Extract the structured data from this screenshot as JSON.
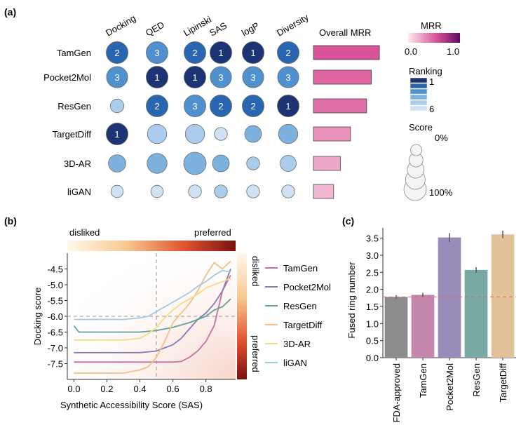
{
  "panel_labels": {
    "a": "(a)",
    "b": "(b)",
    "c": "(c)"
  },
  "colors": {
    "rank": [
      "#1c3474",
      "#2a65b1",
      "#4f90cf",
      "#7db2de",
      "#aacdeb",
      "#cfe1f3"
    ],
    "mrr_low": "#fbe3ea",
    "mrr_high": "#5e0b62",
    "line_colors": [
      "#c96ea6",
      "#8b78b6",
      "#5fa397",
      "#f2c086",
      "#f4dc86",
      "#9fcbe6"
    ],
    "bar_colors": [
      "#8c8c8c",
      "#c586ae",
      "#9a8cba",
      "#78a9a3",
      "#e3c29a"
    ],
    "bad": "#fff6e8",
    "good": "#c43a2c"
  },
  "chart_data": [
    {
      "type": "bubble-matrix",
      "columns": [
        "Docking",
        "QED",
        "Lipinski",
        "SAS",
        "logP",
        "Diversity"
      ],
      "rows": [
        {
          "name": "TamGen",
          "ranks": [
            2,
            3,
            2,
            1,
            1,
            2
          ],
          "scores": [
            95,
            95,
            95,
            95,
            95,
            95
          ],
          "mrr": 0.98
        },
        {
          "name": "Pocket2Mol",
          "ranks": [
            3,
            1,
            1,
            3,
            3,
            3
          ],
          "scores": [
            90,
            95,
            95,
            90,
            90,
            90
          ],
          "mrr": 0.86
        },
        {
          "name": "ResGen",
          "ranks": [
            5,
            2,
            3,
            2,
            2,
            1
          ],
          "scores": [
            30,
            95,
            95,
            95,
            95,
            95
          ],
          "mrr": 0.79
        },
        {
          "name": "TargetDiff",
          "ranks": [
            1,
            5,
            5,
            6,
            4,
            4
          ],
          "scores": [
            95,
            75,
            75,
            25,
            55,
            75
          ],
          "mrr": 0.55
        },
        {
          "name": "3D-AR",
          "ranks": [
            4,
            4,
            4,
            4,
            5,
            5
          ],
          "scores": [
            60,
            80,
            100,
            55,
            25,
            50
          ],
          "mrr": 0.4
        },
        {
          "name": "liGAN",
          "ranks": [
            6,
            6,
            6,
            5,
            6,
            6
          ],
          "scores": [
            20,
            20,
            25,
            25,
            25,
            25
          ],
          "mrr": 0.3
        }
      ],
      "overall_label": "Overall MRR",
      "legend": {
        "mrr_title": "MRR",
        "mrr_min": "0.0",
        "mrr_max": "1.0",
        "ranking_title": "Ranking",
        "ranking_top": "1",
        "ranking_bottom": "6",
        "score_title": "Score",
        "score_min": "0%",
        "score_max": "100%"
      }
    },
    {
      "type": "line",
      "title_left": "disliked",
      "title_right": "preferred",
      "side_top": "disliked",
      "side_bottom": "preferred",
      "xlabel": "Synthetic Accessibility Score (SAS)",
      "ylabel": "Docking score",
      "xlim": [
        -0.04,
        0.98
      ],
      "ylim": [
        -8.0,
        -4.0
      ],
      "xticks": [
        0.0,
        0.2,
        0.4,
        0.6,
        0.8
      ],
      "xtick_labels": [
        "0.0",
        "0.2",
        "0.4",
        "0.6",
        "0.8"
      ],
      "yticks": [
        -4.5,
        -5.0,
        -5.5,
        -6.0,
        -6.5,
        -7.0,
        -7.5
      ],
      "ytick_labels": [
        "-4.5",
        "-5.0",
        "-5.5",
        "-6.0",
        "-6.5",
        "-7.0",
        "-7.5"
      ],
      "vline": 0.5,
      "hline": -6.0,
      "series": [
        {
          "name": "TamGen",
          "x": [
            0.0,
            0.1,
            0.2,
            0.3,
            0.4,
            0.5,
            0.6,
            0.65,
            0.7,
            0.75,
            0.8,
            0.85,
            0.9,
            0.95
          ],
          "y": [
            -7.45,
            -7.45,
            -7.45,
            -7.45,
            -7.45,
            -7.45,
            -7.45,
            -7.43,
            -7.3,
            -7.1,
            -6.8,
            -6.3,
            -5.2,
            -4.7
          ]
        },
        {
          "name": "Pocket2Mol",
          "x": [
            0.0,
            0.1,
            0.2,
            0.3,
            0.4,
            0.5,
            0.55,
            0.6,
            0.65,
            0.7,
            0.75,
            0.8,
            0.85,
            0.9,
            0.95
          ],
          "y": [
            -7.15,
            -7.15,
            -7.15,
            -7.15,
            -7.15,
            -7.1,
            -7.0,
            -6.9,
            -6.7,
            -6.4,
            -6.1,
            -5.9,
            -5.6,
            -5.2,
            -4.5
          ]
        },
        {
          "name": "ResGen",
          "x": [
            0.0,
            0.03,
            0.1,
            0.2,
            0.3,
            0.4,
            0.5,
            0.6,
            0.7,
            0.75,
            0.8,
            0.85,
            0.9,
            0.95
          ],
          "y": [
            -6.3,
            -6.5,
            -6.5,
            -6.5,
            -6.5,
            -6.5,
            -6.45,
            -6.35,
            -6.2,
            -6.1,
            -6.0,
            -5.8,
            -5.7,
            -5.45
          ]
        },
        {
          "name": "TargetDiff",
          "x": [
            0.0,
            0.1,
            0.2,
            0.3,
            0.4,
            0.45,
            0.5,
            0.55,
            0.6,
            0.65,
            0.7,
            0.75,
            0.8,
            0.85,
            0.9,
            0.95
          ],
          "y": [
            -7.8,
            -7.8,
            -7.8,
            -7.8,
            -7.7,
            -7.6,
            -7.3,
            -6.8,
            -6.2,
            -5.9,
            -5.6,
            -5.2,
            -4.7,
            -4.3,
            -4.5,
            -4.25
          ]
        },
        {
          "name": "3D-AR",
          "x": [
            0.0,
            0.1,
            0.2,
            0.3,
            0.4,
            0.45,
            0.5,
            0.55,
            0.6,
            0.65,
            0.7,
            0.75,
            0.8,
            0.85,
            0.9,
            0.95
          ],
          "y": [
            -6.75,
            -6.75,
            -6.75,
            -6.75,
            -6.7,
            -6.55,
            -6.35,
            -6.05,
            -5.8,
            -5.6,
            -5.45,
            -5.3,
            -5.1,
            -5.0,
            -4.9,
            -4.8
          ]
        },
        {
          "name": "liGAN",
          "x": [
            0.0,
            0.1,
            0.2,
            0.3,
            0.4,
            0.45,
            0.5,
            0.55,
            0.6,
            0.65,
            0.7,
            0.75,
            0.8,
            0.85,
            0.9,
            0.95
          ],
          "y": [
            -6.1,
            -6.1,
            -6.1,
            -6.1,
            -6.05,
            -6.0,
            -5.85,
            -5.7,
            -5.55,
            -5.4,
            -5.25,
            -5.05,
            -4.9,
            -4.7,
            -4.55,
            -4.6
          ]
        }
      ]
    },
    {
      "type": "bar",
      "ylabel": "Fused ring number",
      "categories": [
        "FDA-approved",
        "TamGen",
        "Pocket2Mol",
        "ResGen",
        "TargetDiff"
      ],
      "values": [
        1.78,
        1.84,
        3.52,
        2.57,
        3.61
      ],
      "errors": [
        0.05,
        0.06,
        0.13,
        0.08,
        0.11
      ],
      "ylim": [
        0.0,
        3.8
      ],
      "yticks": [
        0.0,
        0.5,
        1.0,
        1.5,
        2.0,
        2.5,
        3.0,
        3.5
      ],
      "ytick_labels": [
        "0.0",
        "0.5",
        "1.0",
        "1.5",
        "2.0",
        "2.5",
        "3.0",
        "3.5"
      ],
      "reference_line": 1.78
    }
  ]
}
